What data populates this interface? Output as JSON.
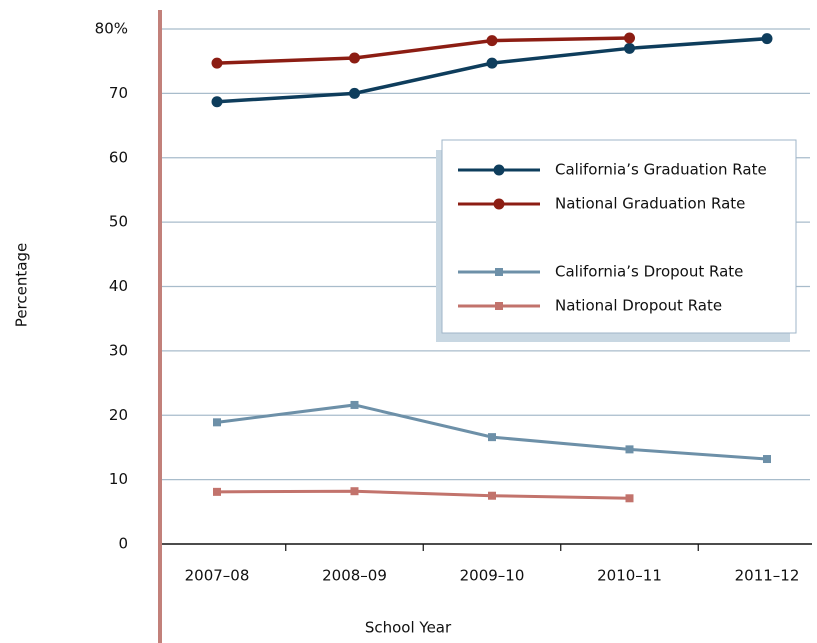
{
  "chart_data": {
    "type": "line",
    "x_label": "School Year",
    "y_label": "Percentage",
    "categories": [
      "2007–08",
      "2008–09",
      "2009–10",
      "2010–11",
      "2011–12"
    ],
    "series": [
      {
        "name": "California’s Graduation Rate",
        "color": "#0e3d5c",
        "marker": "circle",
        "values": [
          68.7,
          70,
          74.7,
          77,
          78.5
        ]
      },
      {
        "name": "National Graduation Rate",
        "color": "#8c1d13",
        "marker": "circle",
        "values": [
          74.7,
          75.5,
          78.2,
          78.6,
          null
        ]
      },
      {
        "name": "California’s Dropout Rate",
        "color": "#6d90a8",
        "marker": "square",
        "values": [
          18.9,
          21.6,
          16.6,
          14.7,
          13.2
        ]
      },
      {
        "name": "National Dropout Rate",
        "color": "#c2736c",
        "marker": "square",
        "values": [
          8.1,
          8.2,
          7.5,
          7.1,
          null
        ]
      }
    ],
    "ylim": [
      0,
      80
    ],
    "yticks": [
      0,
      10,
      20,
      30,
      40,
      50,
      60,
      70,
      {
        "value": 80,
        "label": "80%"
      }
    ],
    "grid": true
  }
}
